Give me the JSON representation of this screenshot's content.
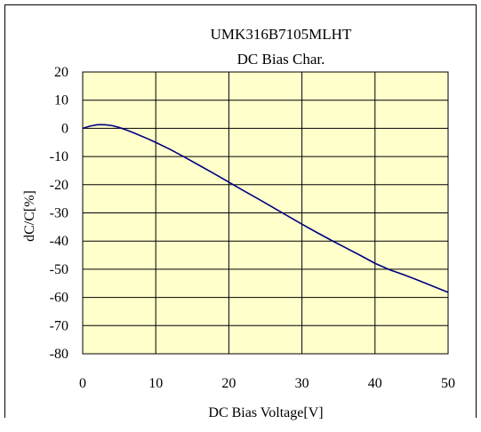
{
  "chart_data": {
    "type": "line",
    "title": "UMK316B7105MLHT",
    "subtitle": "DC Bias Char.",
    "xlabel": "DC Bias Voltage[V]",
    "ylabel": "dC/C[%]",
    "xlim": [
      0,
      50
    ],
    "ylim": [
      -80,
      20
    ],
    "x_ticks": [
      0,
      10,
      20,
      30,
      40,
      50
    ],
    "y_ticks": [
      20,
      10,
      0,
      -10,
      -20,
      -30,
      -40,
      -50,
      -60,
      -70,
      -80
    ],
    "x_tick_labels": [
      "0",
      "10",
      "20",
      "30",
      "40",
      "50"
    ],
    "y_tick_labels": [
      "20",
      "10",
      "0",
      "-10",
      "-20",
      "-30",
      "-40",
      "-50",
      "-60",
      "-70",
      "-80"
    ],
    "grid": true,
    "plot_background": "#ffffcc",
    "series": [
      {
        "color": "#000080",
        "x": [
          0,
          1,
          2,
          3,
          4,
          5,
          6,
          7,
          8,
          9,
          10,
          12,
          14,
          16,
          18,
          20,
          22,
          24,
          26,
          28,
          30,
          32,
          34,
          36,
          38,
          40,
          42,
          44,
          46,
          48,
          50
        ],
        "y": [
          0,
          0.8,
          1.3,
          1.3,
          1.0,
          0.3,
          -0.6,
          -1.6,
          -2.7,
          -3.8,
          -5.0,
          -7.5,
          -10.3,
          -13.2,
          -16.1,
          -19.1,
          -22.1,
          -25.0,
          -28.0,
          -31.0,
          -34.0,
          -36.9,
          -39.7,
          -42.4,
          -45.1,
          -47.9,
          -50.2,
          -52.0,
          -54.0,
          -56.1,
          -58.2
        ]
      }
    ]
  }
}
